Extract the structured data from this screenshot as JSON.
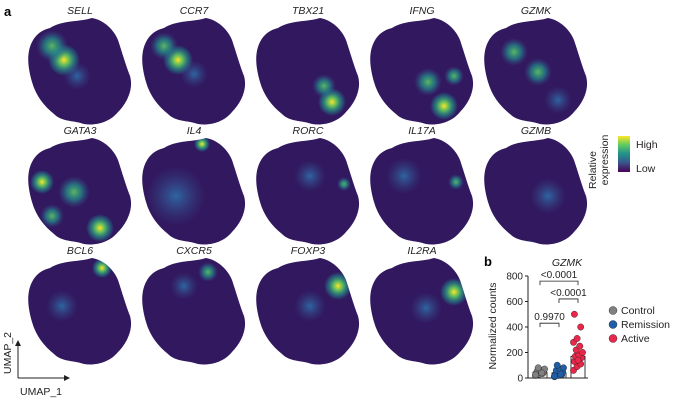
{
  "panel_labels": {
    "a": "a",
    "b": "b"
  },
  "umap_genes": [
    "SELL",
    "CCR7",
    "TBX21",
    "IFNG",
    "GZMK",
    "GATA3",
    "IL4",
    "RORC",
    "IL17A",
    "GZMB",
    "BCL6",
    "CXCR5",
    "FOXP3",
    "IL2RA"
  ],
  "umap_axes": {
    "x": "UMAP_1",
    "y": "UMAP_2"
  },
  "colorbar": {
    "title_line1": "Relative",
    "title_line2": "expression",
    "high": "High",
    "low": "Low",
    "colors": [
      "#440154",
      "#3b528b",
      "#21918c",
      "#5ec962",
      "#fde725"
    ]
  },
  "chart_data": {
    "type": "bar",
    "title": "GZMK",
    "ylabel": "Normalized counts",
    "xlabel": "",
    "ylim": [
      0,
      800
    ],
    "yticks": [
      0,
      200,
      400,
      600,
      800
    ],
    "categories": [
      "Control",
      "Remission",
      "Active"
    ],
    "values": [
      45,
      40,
      170
    ],
    "colors": [
      "#808080",
      "#1f5fa8",
      "#e8274b"
    ],
    "points": [
      [
        20,
        30,
        35,
        40,
        45,
        50,
        55,
        60,
        70,
        80,
        40,
        25
      ],
      [
        10,
        20,
        25,
        30,
        40,
        50,
        60,
        70,
        80,
        100,
        30,
        15
      ],
      [
        60,
        90,
        110,
        130,
        150,
        160,
        170,
        180,
        200,
        220,
        250,
        280,
        310,
        400,
        500,
        140
      ]
    ],
    "comparisons": [
      {
        "label": "0.9970",
        "from": "Control",
        "to": "Remission",
        "y": 430
      },
      {
        "label": "<0.0001",
        "from": "Remission",
        "to": "Active",
        "y": 620
      },
      {
        "label": "<0.0001",
        "from": "Control",
        "to": "Active",
        "y": 760
      }
    ],
    "legend": [
      "Control",
      "Remission",
      "Active"
    ],
    "legend_position": "right"
  }
}
